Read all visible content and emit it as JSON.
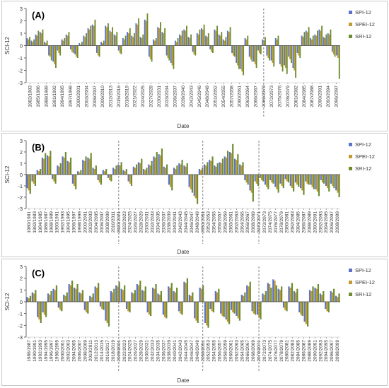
{
  "colors": {
    "spi": "#5b74c9",
    "spei": "#c49a32",
    "sri": "#6f8d2e",
    "axis": "#444444",
    "divider": "#777777"
  },
  "chart_data": [
    {
      "type": "bar",
      "panel_label": "(A)",
      "ylabel": "SCI-12",
      "xlabel": "Date",
      "ylim": [
        -3,
        3
      ],
      "yticks": [
        "3",
        "2",
        "1",
        "0",
        "-1",
        "-2",
        "-3"
      ],
      "legend": [
        "SPI-12",
        "SPEI-12",
        "SRI-12"
      ],
      "legend_position": "right",
      "grid": false,
      "x_tick_labels": [
        "1982/1983",
        "1985/1986",
        "1988/1989",
        "1991/1992",
        "1994/1995",
        "1997/1998",
        "2000/2001",
        "2003/2004",
        "2006/2007",
        "2009/2010",
        "2012/2013",
        "2015/2016",
        "2018/2019",
        "2021/2022",
        "2024/2025",
        "2027/2028",
        "2030/2031",
        "2033/2034",
        "2036/2037",
        "2039/2040",
        "2042/2043",
        "2045/2046",
        "2048/2049",
        "2051/2052",
        "2054/2055",
        "2057/2058",
        "2060/2061",
        "2063/2064",
        "2066/2067",
        "2069/2070",
        "2072/2073",
        "2075/2076",
        "2078/2079",
        "2081/2082",
        "2084/2085",
        "2087/2088",
        "2090/2091",
        "2093/2094",
        "2096/2097"
      ],
      "period_dividers": [
        "2020/2021",
        "2050/2051",
        "2069/2070"
      ],
      "series": [
        {
          "name": "SPI-12",
          "values": [
            0.6,
            0.4,
            0.9,
            1.1,
            0.3,
            -0.8,
            -1.3,
            -0.4,
            0.5,
            0.9,
            -0.3,
            -0.7,
            0.2,
            0.8,
            1.4,
            1.7,
            -0.6,
            0.3,
            1.6,
            1.2,
            0.9,
            -0.4,
            0.6,
            1.1,
            0.8,
            1.8,
            0.7,
            2.1,
            -0.9,
            0.5,
            1.5,
            1.1,
            -0.8,
            -1.4,
            0.4,
            0.9,
            1.3,
            0.7,
            -0.5,
            1.0,
            1.4,
            0.8,
            -0.3,
            1.3,
            0.9,
            0.5,
            1.2,
            -0.6,
            -1.4,
            -1.9,
            0.6,
            -0.9,
            -1.3,
            -0.4,
            0.5,
            -0.8,
            -1.2,
            0.6,
            -1.5,
            -1.6,
            -0.9,
            -1.8,
            -0.6,
            0.8,
            1.2,
            0.6,
            0.9,
            1.3,
            0.7,
            1.0,
            -0.5,
            -0.8
          ]
        },
        {
          "name": "SPEI-12",
          "values": [
            0.5,
            0.3,
            0.8,
            1.0,
            0.2,
            -0.9,
            -1.5,
            -0.6,
            0.4,
            0.8,
            -0.5,
            -0.9,
            0.1,
            0.7,
            1.3,
            1.6,
            -0.8,
            0.2,
            1.5,
            1.1,
            0.8,
            -0.6,
            0.5,
            1.0,
            0.7,
            1.7,
            0.6,
            2.0,
            -1.1,
            0.4,
            1.4,
            1.0,
            -1.0,
            -1.6,
            0.3,
            0.8,
            1.2,
            0.6,
            -0.7,
            0.9,
            1.3,
            0.7,
            -0.5,
            1.2,
            0.8,
            0.4,
            1.1,
            -0.8,
            -1.6,
            -2.1,
            0.5,
            -1.1,
            -1.5,
            -0.6,
            0.4,
            -1.0,
            -1.4,
            0.5,
            -1.7,
            -1.8,
            -1.1,
            -2.0,
            -0.8,
            0.7,
            1.1,
            0.5,
            0.8,
            1.2,
            0.6,
            0.9,
            -0.7,
            -1.0
          ]
        },
        {
          "name": "SRI-12",
          "values": [
            0.7,
            0.5,
            1.2,
            1.3,
            0.4,
            -1.2,
            -1.8,
            -0.8,
            0.6,
            1.1,
            -0.6,
            -1.0,
            0.3,
            1.0,
            1.6,
            2.1,
            -0.9,
            0.4,
            1.8,
            1.5,
            1.1,
            -0.7,
            0.8,
            1.4,
            1.0,
            2.2,
            0.9,
            2.6,
            -1.3,
            0.6,
            1.9,
            1.4,
            -1.2,
            -1.9,
            0.6,
            1.2,
            1.6,
            0.9,
            -0.8,
            1.3,
            1.7,
            1.0,
            -0.6,
            1.6,
            1.1,
            0.7,
            1.5,
            -0.9,
            -1.9,
            -2.4,
            0.8,
            -1.3,
            -1.8,
            -0.7,
            0.7,
            -1.2,
            -1.7,
            0.8,
            -2.1,
            -2.3,
            -1.4,
            -2.6,
            -1.0,
            1.1,
            1.5,
            0.8,
            1.2,
            1.6,
            0.9,
            1.3,
            -0.9,
            -2.7
          ]
        }
      ]
    },
    {
      "type": "bar",
      "panel_label": "(B)",
      "ylabel": "SCI-12",
      "xlabel": "Date",
      "ylim": [
        -3,
        3
      ],
      "yticks": [
        "3",
        "2",
        "1",
        "0",
        "-1",
        "-2",
        "-3"
      ],
      "legend": [
        "SPI-12",
        "SPEI-12",
        "SRI-12"
      ],
      "legend_position": "right",
      "grid": false,
      "x_tick_labels": [
        "1980/1981",
        "1982/1983",
        "1984/1985",
        "1986/1987",
        "1988/1989",
        "1990/1991",
        "1992/1993",
        "1994/1995",
        "1996/1997",
        "1998/1999",
        "2000/2001",
        "2002/2003",
        "2004/2005",
        "2006/2007",
        "2008/2009",
        "2010/2011",
        "2020/2021",
        "2022/2023",
        "2024/2025",
        "2026/2027",
        "2028/2029",
        "2030/2031",
        "2032/2033",
        "2034/2035",
        "2036/2037",
        "2038/2039",
        "2040/2041",
        "2042/2043",
        "2044/2045",
        "2046/2047",
        "2048/2049",
        "2050/2051",
        "2052/2053",
        "2054/2055",
        "2056/2057",
        "2058/2059",
        "2060/2061",
        "2062/2063",
        "2064/2065",
        "2066/2067",
        "2068/2069",
        "2070/2071",
        "2072/2073",
        "2074/2075",
        "2076/2077",
        "2078/2079",
        "2080/2081",
        "2082/2083",
        "2084/2085",
        "2086/2087",
        "2088/2089",
        "2090/2091",
        "2092/2093",
        "2094/2095",
        "2096/2097",
        "2098/2099"
      ],
      "period_dividers": [
        "2020/2021",
        "2050/2051",
        "2070/2071"
      ],
      "series": [
        {
          "name": "SPI-12",
          "values": [
            -1.2,
            -0.6,
            0.4,
            1.5,
            1.7,
            -0.4,
            0.8,
            1.6,
            1.2,
            -0.8,
            0.3,
            1.3,
            1.5,
            0.6,
            -0.5,
            0.4,
            -0.3,
            0.6,
            0.9,
            0.4,
            -0.6,
            0.7,
            1.1,
            0.5,
            0.9,
            1.6,
            1.8,
            0.7,
            -0.9,
            0.6,
            1.0,
            0.8,
            -1.1,
            -1.9,
            0.5,
            0.9,
            1.3,
            0.8,
            1.1,
            1.6,
            2.0,
            1.4,
            0.9,
            -0.5,
            -1.4,
            -0.6,
            -0.3,
            -0.9,
            -0.5,
            -1.1,
            -0.8,
            -0.4,
            -1.0,
            -0.7,
            -1.2,
            -0.6,
            -0.9,
            -1.3,
            -0.5,
            -1.0,
            -0.8,
            -1.4
          ]
        },
        {
          "name": "SPEI-12",
          "values": [
            -1.4,
            -0.8,
            0.3,
            1.4,
            1.6,
            -0.6,
            0.7,
            1.5,
            1.1,
            -1.0,
            0.2,
            1.2,
            1.4,
            0.5,
            -0.7,
            0.3,
            -0.5,
            0.5,
            0.8,
            0.3,
            -0.8,
            0.6,
            1.0,
            0.4,
            0.8,
            1.5,
            1.7,
            0.6,
            -1.1,
            0.5,
            0.9,
            0.7,
            -1.3,
            -2.1,
            0.4,
            0.8,
            1.2,
            0.7,
            1.0,
            1.5,
            1.9,
            1.3,
            0.8,
            -0.7,
            -1.6,
            -0.8,
            -0.5,
            -1.1,
            -0.7,
            -1.3,
            -1.0,
            -0.6,
            -1.2,
            -0.9,
            -1.4,
            -0.8,
            -1.1,
            -1.5,
            -0.7,
            -1.2,
            -1.0,
            -1.6
          ]
        },
        {
          "name": "SRI-12",
          "values": [
            -1.7,
            -1.0,
            0.5,
            1.9,
            2.1,
            -0.8,
            1.0,
            2.0,
            1.5,
            -1.3,
            0.4,
            1.6,
            1.9,
            0.8,
            -0.9,
            0.5,
            -0.6,
            0.8,
            1.1,
            0.5,
            -1.0,
            0.9,
            1.4,
            0.6,
            1.2,
            2.0,
            2.3,
            0.9,
            -1.4,
            0.8,
            1.3,
            1.0,
            -1.6,
            -2.6,
            0.6,
            1.1,
            1.6,
            1.0,
            1.4,
            2.1,
            2.7,
            1.8,
            1.1,
            -0.9,
            -2.4,
            -1.0,
            -0.6,
            -1.3,
            -0.8,
            -1.6,
            -1.2,
            -0.7,
            -1.5,
            -1.1,
            -1.8,
            -0.9,
            -1.3,
            -1.9,
            -0.8,
            -1.5,
            -1.2,
            -2.0
          ]
        }
      ]
    },
    {
      "type": "bar",
      "panel_label": "(C)",
      "ylabel": "SCI-12",
      "xlabel": "Date",
      "ylim": [
        -3,
        3
      ],
      "yticks": [
        "3",
        "2",
        "1",
        "0",
        "-1",
        "-2",
        "-3"
      ],
      "legend": [
        "SPI-12",
        "SPEI-12",
        "SRI-12"
      ],
      "legend_position": "right",
      "grid": false,
      "x_tick_labels": [
        "1986/1987",
        "1990/1991",
        "1992/1993",
        "1994/1995",
        "1996/1997",
        "1998/1999",
        "2000/2001",
        "2002/2003",
        "2004/2005",
        "2006/2007",
        "2008/2009",
        "2010/2011",
        "2012/2013",
        "2014/2015",
        "2016/2017",
        "2018/2019",
        "2020/2021",
        "2022/2023",
        "2024/2025",
        "2026/2027",
        "2028/2029",
        "2030/2031",
        "2032/2033",
        "2034/2035",
        "2036/2037",
        "2038/2039",
        "2040/2041",
        "2042/2043",
        "2044/2045",
        "2046/2047",
        "2048/2049",
        "2050/2051",
        "2052/2053",
        "2054/2055",
        "2056/2057",
        "2058/2059",
        "2060/2061",
        "2062/2063",
        "2064/2065",
        "2066/2067",
        "2068/2069",
        "2070/2071",
        "2072/2073",
        "2074/2075",
        "2076/2077",
        "2078/2079",
        "2080/2081",
        "2082/2083",
        "2084/2085",
        "2086/2087",
        "2088/2089",
        "2090/2091",
        "2092/2093",
        "2094/2095",
        "2096/2097",
        "2098/2099"
      ],
      "period_dividers": [
        "2020/2021",
        "2050/2051",
        "2070/2071"
      ],
      "series": [
        {
          "name": "SPI-12",
          "values": [
            0.4,
            0.8,
            -1.3,
            -0.9,
            0.7,
            1.1,
            -0.5,
            0.6,
            1.5,
            1.2,
            0.8,
            -0.7,
            0.5,
            1.3,
            -0.4,
            -1.6,
            0.9,
            1.4,
            1.1,
            -0.6,
            0.8,
            1.5,
            1.0,
            -0.9,
            1.2,
            0.7,
            -1.1,
            1.3,
            0.9,
            -0.8,
            1.7,
            0.6,
            -1.4,
            1.2,
            -1.8,
            -0.6,
            0.9,
            -1.0,
            -1.5,
            -0.7,
            -1.2,
            0.6,
            1.4,
            -0.8,
            -1.1,
            0.7,
            1.6,
            1.9,
            1.1,
            -0.5,
            1.3,
            0.9,
            -0.9,
            -1.7,
            1.0,
            1.2,
            0.7,
            -0.6,
            0.9,
            0.5
          ]
        },
        {
          "name": "SPEI-12",
          "values": [
            0.3,
            0.7,
            -1.5,
            -1.1,
            0.6,
            1.0,
            -0.7,
            0.5,
            1.4,
            1.1,
            0.7,
            -0.9,
            0.4,
            1.2,
            -0.6,
            -1.8,
            0.8,
            1.3,
            1.0,
            -0.8,
            0.7,
            1.4,
            0.9,
            -1.1,
            1.1,
            0.6,
            -1.3,
            1.2,
            0.8,
            -1.0,
            1.6,
            0.5,
            -1.6,
            1.1,
            -2.0,
            -0.8,
            0.8,
            -1.2,
            -1.7,
            -0.9,
            -1.4,
            0.5,
            1.3,
            -1.0,
            -1.3,
            0.6,
            1.5,
            1.8,
            1.0,
            -0.7,
            1.2,
            0.8,
            -1.1,
            -1.9,
            0.9,
            1.1,
            0.6,
            -0.8,
            0.8,
            0.4
          ]
        },
        {
          "name": "SRI-12",
          "values": [
            0.5,
            1.0,
            -1.8,
            -1.3,
            0.9,
            1.4,
            -0.8,
            0.8,
            1.8,
            1.5,
            1.0,
            -1.0,
            0.7,
            1.6,
            -0.7,
            -2.1,
            1.1,
            1.7,
            1.4,
            -0.9,
            1.0,
            1.8,
            1.3,
            -1.2,
            1.5,
            0.9,
            -1.4,
            1.6,
            1.2,
            -1.1,
            2.0,
            0.8,
            -1.8,
            1.4,
            -2.2,
            -0.9,
            1.1,
            -1.3,
            -1.9,
            -1.0,
            -1.6,
            0.8,
            1.7,
            -1.1,
            -1.5,
            0.9,
            1.2,
            1.4,
            1.3,
            -0.8,
            1.6,
            1.1,
            -1.2,
            -2.1,
            1.3,
            1.5,
            0.9,
            -0.9,
            1.1,
            0.7
          ]
        }
      ]
    }
  ]
}
